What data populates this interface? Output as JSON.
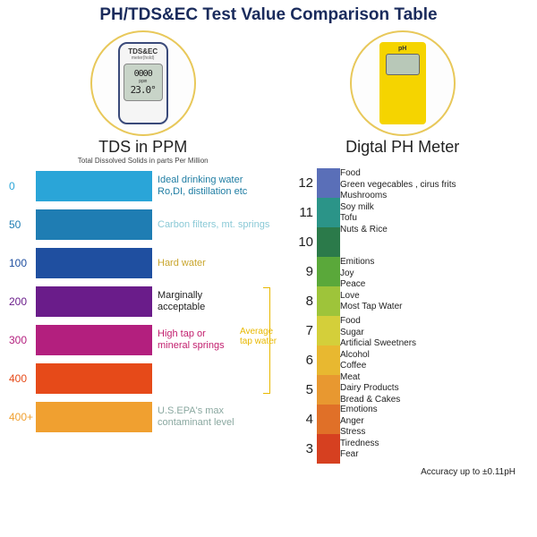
{
  "title": "PH/TDS&EC Test Value Comparison Table",
  "devices": {
    "tds": {
      "label": "TDS&EC",
      "sublabel": "meter(hold)",
      "lcd_top": "0000",
      "lcd_unit": "ppm",
      "lcd_bot": "23.0°",
      "title": "TDS in PPM",
      "subtitle": "Total Dissolved Solids in parts Per Million"
    },
    "ph": {
      "label": "pH",
      "title": "Digtal PH Meter",
      "subtitle": ""
    }
  },
  "tds_scale": {
    "rows": [
      {
        "value": "0",
        "color": "#2aa5d8",
        "desc": "Ideal drinking water\nRo,DI, distillation etc",
        "desc_color": "#1f7da3"
      },
      {
        "value": "50",
        "color": "#1f7db3",
        "desc": "Carbon filters, mt. springs",
        "desc_color": "#8ac9d6"
      },
      {
        "value": "100",
        "color": "#1f4fa0",
        "desc": "Hard water",
        "desc_color": "#c9a62e"
      },
      {
        "value": "200",
        "color": "#6a1c8a",
        "desc": "Marginally\nacceptable",
        "desc_color": "#222222"
      },
      {
        "value": "300",
        "color": "#b31f7e",
        "desc": "High tap or\nmineral springs",
        "desc_color": "#c21f6e"
      },
      {
        "value": "400",
        "color": "#e64a19",
        "desc": "",
        "desc_color": "#222222"
      },
      {
        "value": "400+",
        "color": "#f0a030",
        "desc": "U.S.EPA's max\ncontaminant level",
        "desc_color": "#8aa8a0"
      }
    ],
    "bracket_label": "Average\ntap water"
  },
  "ph_scale": {
    "rows": [
      {
        "num": "12",
        "color": "#5a6fb8"
      },
      {
        "num": "11",
        "color": "#2b9488"
      },
      {
        "num": "10",
        "color": "#2b7a4a"
      },
      {
        "num": "9",
        "color": "#5aa83a"
      },
      {
        "num": "8",
        "color": "#9ec43a"
      },
      {
        "num": "7",
        "color": "#d4cf3a"
      },
      {
        "num": "6",
        "color": "#e8b830"
      },
      {
        "num": "5",
        "color": "#e89830"
      },
      {
        "num": "4",
        "color": "#e07028"
      },
      {
        "num": "3",
        "color": "#d64020"
      }
    ],
    "groups": [
      {
        "start_idx": 0,
        "lines": [
          "Food",
          "Green vegecables , cirus frits",
          "Mushrooms",
          "Soy milk",
          "Tofu",
          "Nuts & Rice"
        ]
      },
      {
        "start_idx": 3,
        "lines": [
          "Emitions",
          "Joy",
          "Peace",
          "Love",
          "Most Tap Water"
        ]
      },
      {
        "start_idx": 5,
        "lines": [
          "Food",
          "Sugar",
          "Artificial Sweetners",
          "Alcohol",
          "Coffee",
          "Meat",
          "Dairy Products",
          "Bread & Cakes"
        ]
      },
      {
        "start_idx": 8,
        "lines": [
          "Emotions",
          "Anger",
          "Stress",
          "Tiredness",
          "Fear"
        ]
      }
    ]
  },
  "accuracy": "Accuracy up to ±0.11pH"
}
